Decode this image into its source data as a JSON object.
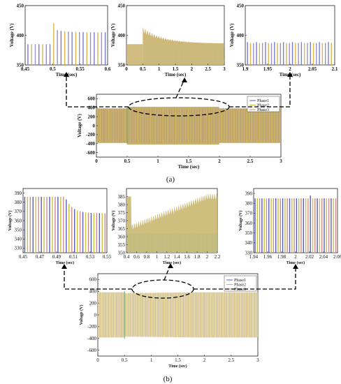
{
  "colors": {
    "phase1": "#7a7ad0",
    "phase2": "#d9b44a",
    "phase3": "#9b8fc9",
    "phase1_b": "#5a5ab8",
    "phase2_b": "#c8c23a",
    "phase3_b": "#d08a8a",
    "fill_a": "#c9b06b",
    "fill_b": "#e6d9a8",
    "connector": "#000000"
  },
  "captions": {
    "a": "(a)",
    "b": "(b)"
  },
  "chart_data": [
    {
      "id": "a-main",
      "type": "line",
      "xlabel": "Time (sec)",
      "ylabel": "Voltage (V)",
      "xlim": [
        0,
        3
      ],
      "ylim": [
        -700,
        700
      ],
      "xticks": [
        "0",
        "0.5",
        "1",
        "1.5",
        "2",
        "2.5",
        "3"
      ],
      "yticks": [
        "-600",
        "-400",
        "-200",
        "0",
        "200",
        "400",
        "600"
      ],
      "amplitude_steady": 385,
      "amplitude_transient": 420,
      "transient_start": 0.5,
      "legend": [
        "Phase1",
        "Phase2",
        "Phase3"
      ],
      "legend_position": "top-right"
    },
    {
      "id": "a-zoom1",
      "type": "line",
      "xlabel": "Time (sec)",
      "ylabel": "Voltage (V)",
      "xlim": [
        0.45,
        0.6
      ],
      "ylim": [
        350,
        450
      ],
      "xticks": [
        "0.45",
        "0.5",
        "0.55",
        "0.6"
      ],
      "yticks": [
        "350",
        "400",
        "450"
      ],
      "peaks_before": 385,
      "peak_at_step": 420,
      "peaks_after": 405
    },
    {
      "id": "a-zoom2",
      "type": "line",
      "xlabel": "Time (sec)",
      "ylabel": "Voltage (V)",
      "xlim": [
        0,
        3
      ],
      "ylim": [
        350,
        450
      ],
      "xticks": [
        "0",
        "0.5",
        "1",
        "1.5",
        "2",
        "2.5",
        "3"
      ],
      "yticks": [
        "350",
        "400",
        "450"
      ],
      "level_before": 385,
      "peak_at_step": 415,
      "level_after_settle": 386
    },
    {
      "id": "a-zoom3",
      "type": "line",
      "xlabel": "Time (sec)",
      "ylabel": "Voltage (V)",
      "xlim": [
        1.9,
        2.1
      ],
      "ylim": [
        350,
        450
      ],
      "xticks": [
        "1.9",
        "1.95",
        "2",
        "2.05",
        "2.1"
      ],
      "yticks": [
        "350",
        "400",
        "450"
      ],
      "peaks": 387
    },
    {
      "id": "b-zoom1",
      "type": "line",
      "xlabel": "Time (sec)",
      "ylabel": "Voltage (V)",
      "xlim": [
        0.45,
        0.55
      ],
      "ylim": [
        325,
        395
      ],
      "xticks": [
        "0.45",
        "0.47",
        "0.49",
        "0.51",
        "0.53",
        "0.55"
      ],
      "yticks": [
        "330",
        "340",
        "350",
        "360",
        "370",
        "380",
        "390"
      ],
      "peaks_before": 386,
      "peaks_after": 368
    },
    {
      "id": "b-zoom2",
      "type": "line",
      "xlabel": "Time (sec)",
      "ylabel": "Voltage (V)",
      "xlim": [
        0.4,
        2.2
      ],
      "ylim": [
        350,
        390
      ],
      "xticks": [
        "0.4",
        "0.6",
        "0.8",
        "1",
        "1.2",
        "1.4",
        "1.6",
        "1.8",
        "2",
        "2.2"
      ],
      "yticks": [
        "350",
        "355",
        "360",
        "365",
        "370",
        "375",
        "380",
        "385"
      ],
      "level_before": 385,
      "dip_after_step": 366,
      "level_end": 385
    },
    {
      "id": "b-zoom3",
      "type": "line",
      "xlabel": "Time (sec)",
      "ylabel": "Voltage (V)",
      "xlim": [
        1.94,
        2.06
      ],
      "ylim": [
        330,
        395
      ],
      "xticks": [
        "1.94",
        "1.96",
        "1.98",
        "2",
        "2.02",
        "2.04",
        "2.06"
      ],
      "yticks": [
        "330",
        "340",
        "350",
        "360",
        "370",
        "380",
        "390"
      ],
      "peaks": 385,
      "peak_max": 388
    },
    {
      "id": "b-main",
      "type": "line",
      "xlabel": "Time (sec)",
      "ylabel": "Voltage (V)",
      "xlim": [
        0,
        3
      ],
      "ylim": [
        -700,
        700
      ],
      "xticks": [
        "0",
        "0.5",
        "1",
        "1.5",
        "2",
        "2.5",
        "3"
      ],
      "yticks": [
        "-600",
        "-400",
        "-200",
        "0",
        "200",
        "400",
        "600"
      ],
      "amplitude_steady": 385,
      "amplitude_dip": 366,
      "transient_start": 0.5,
      "legend": [
        "Phase1",
        "Phase2",
        "Phase3"
      ],
      "legend_position": "top-right"
    }
  ]
}
